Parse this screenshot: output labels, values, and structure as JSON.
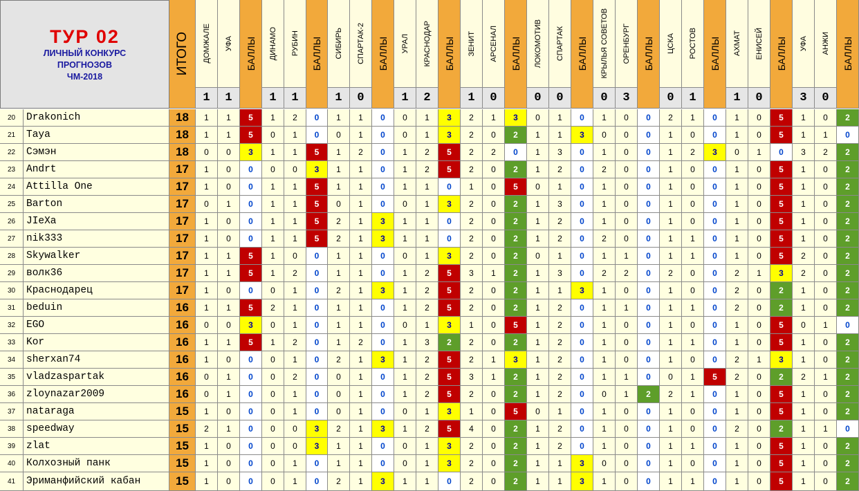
{
  "header": {
    "tour": "ТУР 02",
    "subtitle_lines": [
      "ЛИЧНЫЙ КОНКУРС",
      "ПРОГНОЗОВ",
      "ЧМ-2018"
    ],
    "total_label": "ИТОГО",
    "points_label": "БАЛЛЫ"
  },
  "matches": [
    {
      "home": "ДОМЖАЛЕ",
      "away": "УФА",
      "score": [
        "1",
        "1"
      ]
    },
    {
      "home": "ДИНАМО",
      "away": "РУБИН",
      "score": [
        "1",
        "1"
      ]
    },
    {
      "home": "СИБИРЬ",
      "away": "СПАРТАК-2",
      "score": [
        "1",
        "0"
      ]
    },
    {
      "home": "УРАЛ",
      "away": "КРАСНОДАР",
      "score": [
        "1",
        "2"
      ]
    },
    {
      "home": "ЗЕНИТ",
      "away": "АРСЕНАЛ",
      "score": [
        "1",
        "0"
      ]
    },
    {
      "home": "ЛОКОМОТИВ",
      "away": "СПАРТАК",
      "score": [
        "0",
        "0"
      ]
    },
    {
      "home": "КРЫЛЬЯ СОВЕТОВ",
      "away": "ОРЕНБУРГ",
      "score": [
        "0",
        "3"
      ]
    },
    {
      "home": "ЦСКА",
      "away": "РОСТОВ",
      "score": [
        "0",
        "1"
      ]
    },
    {
      "home": "АХМАТ",
      "away": "ЕНИСЕЙ",
      "score": [
        "1",
        "0"
      ]
    },
    {
      "home": "УФА",
      "away": "АНЖИ",
      "score": [
        "3",
        "0"
      ]
    }
  ],
  "rows": [
    {
      "num": "20",
      "name": "Drakonich",
      "total": "18",
      "preds": [
        [
          "1",
          "1",
          "5"
        ],
        [
          "1",
          "2",
          "0"
        ],
        [
          "1",
          "1",
          "0"
        ],
        [
          "0",
          "1",
          "3"
        ],
        [
          "2",
          "1",
          "3"
        ],
        [
          "0",
          "1",
          "0"
        ],
        [
          "1",
          "0",
          "0"
        ],
        [
          "2",
          "1",
          "0"
        ],
        [
          "1",
          "0",
          "5"
        ],
        [
          "1",
          "0",
          "2"
        ]
      ]
    },
    {
      "num": "21",
      "name": "Taya",
      "total": "18",
      "preds": [
        [
          "1",
          "1",
          "5"
        ],
        [
          "0",
          "1",
          "0"
        ],
        [
          "0",
          "1",
          "0"
        ],
        [
          "0",
          "1",
          "3"
        ],
        [
          "2",
          "0",
          "2"
        ],
        [
          "1",
          "1",
          "3"
        ],
        [
          "0",
          "0",
          "0"
        ],
        [
          "1",
          "0",
          "0"
        ],
        [
          "1",
          "0",
          "5"
        ],
        [
          "1",
          "1",
          "0"
        ]
      ]
    },
    {
      "num": "22",
      "name": "Сэмэн",
      "total": "18",
      "preds": [
        [
          "0",
          "0",
          "3"
        ],
        [
          "1",
          "1",
          "5"
        ],
        [
          "1",
          "2",
          "0"
        ],
        [
          "1",
          "2",
          "5"
        ],
        [
          "2",
          "2",
          "0"
        ],
        [
          "1",
          "3",
          "0"
        ],
        [
          "1",
          "0",
          "0"
        ],
        [
          "1",
          "2",
          "3"
        ],
        [
          "0",
          "1",
          "0"
        ],
        [
          "3",
          "2",
          "2"
        ]
      ]
    },
    {
      "num": "23",
      "name": "Andrt",
      "total": "17",
      "preds": [
        [
          "1",
          "0",
          "0"
        ],
        [
          "0",
          "0",
          "3"
        ],
        [
          "1",
          "1",
          "0"
        ],
        [
          "1",
          "2",
          "5"
        ],
        [
          "2",
          "0",
          "2"
        ],
        [
          "1",
          "2",
          "0"
        ],
        [
          "2",
          "0",
          "0"
        ],
        [
          "1",
          "0",
          "0"
        ],
        [
          "1",
          "0",
          "5"
        ],
        [
          "1",
          "0",
          "2"
        ]
      ]
    },
    {
      "num": "24",
      "name": "Attilla One",
      "total": "17",
      "preds": [
        [
          "1",
          "0",
          "0"
        ],
        [
          "1",
          "1",
          "5"
        ],
        [
          "1",
          "1",
          "0"
        ],
        [
          "1",
          "1",
          "0"
        ],
        [
          "1",
          "0",
          "5"
        ],
        [
          "0",
          "1",
          "0"
        ],
        [
          "1",
          "0",
          "0"
        ],
        [
          "1",
          "0",
          "0"
        ],
        [
          "1",
          "0",
          "5"
        ],
        [
          "1",
          "0",
          "2"
        ]
      ]
    },
    {
      "num": "25",
      "name": "Barton",
      "total": "17",
      "preds": [
        [
          "0",
          "1",
          "0"
        ],
        [
          "1",
          "1",
          "5"
        ],
        [
          "0",
          "1",
          "0"
        ],
        [
          "0",
          "1",
          "3"
        ],
        [
          "2",
          "0",
          "2"
        ],
        [
          "1",
          "3",
          "0"
        ],
        [
          "1",
          "0",
          "0"
        ],
        [
          "1",
          "0",
          "0"
        ],
        [
          "1",
          "0",
          "5"
        ],
        [
          "1",
          "0",
          "2"
        ]
      ]
    },
    {
      "num": "26",
      "name": "JIeXa",
      "total": "17",
      "preds": [
        [
          "1",
          "0",
          "0"
        ],
        [
          "1",
          "1",
          "5"
        ],
        [
          "2",
          "1",
          "3"
        ],
        [
          "1",
          "1",
          "0"
        ],
        [
          "2",
          "0",
          "2"
        ],
        [
          "1",
          "2",
          "0"
        ],
        [
          "1",
          "0",
          "0"
        ],
        [
          "1",
          "0",
          "0"
        ],
        [
          "1",
          "0",
          "5"
        ],
        [
          "1",
          "0",
          "2"
        ]
      ]
    },
    {
      "num": "27",
      "name": "nik333",
      "total": "17",
      "preds": [
        [
          "1",
          "0",
          "0"
        ],
        [
          "1",
          "1",
          "5"
        ],
        [
          "2",
          "1",
          "3"
        ],
        [
          "1",
          "1",
          "0"
        ],
        [
          "2",
          "0",
          "2"
        ],
        [
          "1",
          "2",
          "0"
        ],
        [
          "2",
          "0",
          "0"
        ],
        [
          "1",
          "1",
          "0"
        ],
        [
          "1",
          "0",
          "5"
        ],
        [
          "1",
          "0",
          "2"
        ]
      ]
    },
    {
      "num": "28",
      "name": "Skywalker",
      "total": "17",
      "preds": [
        [
          "1",
          "1",
          "5"
        ],
        [
          "1",
          "0",
          "0"
        ],
        [
          "1",
          "1",
          "0"
        ],
        [
          "0",
          "1",
          "3"
        ],
        [
          "2",
          "0",
          "2"
        ],
        [
          "0",
          "1",
          "0"
        ],
        [
          "1",
          "1",
          "0"
        ],
        [
          "1",
          "1",
          "0"
        ],
        [
          "1",
          "0",
          "5"
        ],
        [
          "2",
          "0",
          "2"
        ]
      ]
    },
    {
      "num": "29",
      "name": "волк36",
      "total": "17",
      "preds": [
        [
          "1",
          "1",
          "5"
        ],
        [
          "1",
          "2",
          "0"
        ],
        [
          "1",
          "1",
          "0"
        ],
        [
          "1",
          "2",
          "5"
        ],
        [
          "3",
          "1",
          "2"
        ],
        [
          "1",
          "3",
          "0"
        ],
        [
          "2",
          "2",
          "0"
        ],
        [
          "2",
          "0",
          "0"
        ],
        [
          "2",
          "1",
          "3"
        ],
        [
          "2",
          "0",
          "2"
        ]
      ]
    },
    {
      "num": "30",
      "name": "Краснодарец",
      "total": "17",
      "preds": [
        [
          "1",
          "0",
          "0"
        ],
        [
          "0",
          "1",
          "0"
        ],
        [
          "2",
          "1",
          "3"
        ],
        [
          "1",
          "2",
          "5"
        ],
        [
          "2",
          "0",
          "2"
        ],
        [
          "1",
          "1",
          "3"
        ],
        [
          "1",
          "0",
          "0"
        ],
        [
          "1",
          "0",
          "0"
        ],
        [
          "2",
          "0",
          "2"
        ],
        [
          "1",
          "0",
          "2"
        ]
      ]
    },
    {
      "num": "31",
      "name": "beduin",
      "total": "16",
      "preds": [
        [
          "1",
          "1",
          "5"
        ],
        [
          "2",
          "1",
          "0"
        ],
        [
          "1",
          "1",
          "0"
        ],
        [
          "1",
          "2",
          "5"
        ],
        [
          "2",
          "0",
          "2"
        ],
        [
          "1",
          "2",
          "0"
        ],
        [
          "1",
          "1",
          "0"
        ],
        [
          "1",
          "1",
          "0"
        ],
        [
          "2",
          "0",
          "2"
        ],
        [
          "1",
          "0",
          "2"
        ]
      ]
    },
    {
      "num": "32",
      "name": "EGO",
      "total": "16",
      "preds": [
        [
          "0",
          "0",
          "3"
        ],
        [
          "0",
          "1",
          "0"
        ],
        [
          "1",
          "1",
          "0"
        ],
        [
          "0",
          "1",
          "3"
        ],
        [
          "1",
          "0",
          "5"
        ],
        [
          "1",
          "2",
          "0"
        ],
        [
          "1",
          "0",
          "0"
        ],
        [
          "1",
          "0",
          "0"
        ],
        [
          "1",
          "0",
          "5"
        ],
        [
          "0",
          "1",
          "0"
        ]
      ]
    },
    {
      "num": "33",
      "name": "Kor",
      "total": "16",
      "preds": [
        [
          "1",
          "1",
          "5"
        ],
        [
          "1",
          "2",
          "0"
        ],
        [
          "1",
          "2",
          "0"
        ],
        [
          "1",
          "3",
          "2"
        ],
        [
          "2",
          "0",
          "2"
        ],
        [
          "1",
          "2",
          "0"
        ],
        [
          "1",
          "0",
          "0"
        ],
        [
          "1",
          "1",
          "0"
        ],
        [
          "1",
          "0",
          "5"
        ],
        [
          "1",
          "0",
          "2"
        ]
      ]
    },
    {
      "num": "34",
      "name": "sherxan74",
      "total": "16",
      "preds": [
        [
          "1",
          "0",
          "0"
        ],
        [
          "0",
          "1",
          "0"
        ],
        [
          "2",
          "1",
          "3"
        ],
        [
          "1",
          "2",
          "5"
        ],
        [
          "2",
          "1",
          "3"
        ],
        [
          "1",
          "2",
          "0"
        ],
        [
          "1",
          "0",
          "0"
        ],
        [
          "1",
          "0",
          "0"
        ],
        [
          "2",
          "1",
          "3"
        ],
        [
          "1",
          "0",
          "2"
        ]
      ]
    },
    {
      "num": "35",
      "name": "vladzaspartak",
      "total": "16",
      "preds": [
        [
          "0",
          "1",
          "0"
        ],
        [
          "0",
          "2",
          "0"
        ],
        [
          "0",
          "1",
          "0"
        ],
        [
          "1",
          "2",
          "5"
        ],
        [
          "3",
          "1",
          "2"
        ],
        [
          "1",
          "2",
          "0"
        ],
        [
          "1",
          "1",
          "0"
        ],
        [
          "0",
          "1",
          "5"
        ],
        [
          "2",
          "0",
          "2"
        ],
        [
          "2",
          "1",
          "2"
        ]
      ]
    },
    {
      "num": "36",
      "name": "zloynazar2009",
      "total": "16",
      "preds": [
        [
          "0",
          "1",
          "0"
        ],
        [
          "0",
          "1",
          "0"
        ],
        [
          "0",
          "1",
          "0"
        ],
        [
          "1",
          "2",
          "5"
        ],
        [
          "2",
          "0",
          "2"
        ],
        [
          "1",
          "2",
          "0"
        ],
        [
          "0",
          "1",
          "2"
        ],
        [
          "2",
          "1",
          "0"
        ],
        [
          "1",
          "0",
          "5"
        ],
        [
          "1",
          "0",
          "2"
        ]
      ]
    },
    {
      "num": "37",
      "name": "nataraga",
      "total": "15",
      "preds": [
        [
          "1",
          "0",
          "0"
        ],
        [
          "0",
          "1",
          "0"
        ],
        [
          "0",
          "1",
          "0"
        ],
        [
          "0",
          "1",
          "3"
        ],
        [
          "1",
          "0",
          "5"
        ],
        [
          "0",
          "1",
          "0"
        ],
        [
          "1",
          "0",
          "0"
        ],
        [
          "1",
          "0",
          "0"
        ],
        [
          "1",
          "0",
          "5"
        ],
        [
          "1",
          "0",
          "2"
        ]
      ]
    },
    {
      "num": "38",
      "name": "speedway",
      "total": "15",
      "preds": [
        [
          "2",
          "1",
          "0"
        ],
        [
          "0",
          "0",
          "3"
        ],
        [
          "2",
          "1",
          "3"
        ],
        [
          "1",
          "2",
          "5"
        ],
        [
          "4",
          "0",
          "2"
        ],
        [
          "1",
          "2",
          "0"
        ],
        [
          "1",
          "0",
          "0"
        ],
        [
          "1",
          "0",
          "0"
        ],
        [
          "2",
          "0",
          "2"
        ],
        [
          "1",
          "1",
          "0"
        ]
      ]
    },
    {
      "num": "39",
      "name": "zlat",
      "total": "15",
      "preds": [
        [
          "1",
          "0",
          "0"
        ],
        [
          "0",
          "0",
          "3"
        ],
        [
          "1",
          "1",
          "0"
        ],
        [
          "0",
          "1",
          "3"
        ],
        [
          "2",
          "0",
          "2"
        ],
        [
          "1",
          "2",
          "0"
        ],
        [
          "1",
          "0",
          "0"
        ],
        [
          "1",
          "1",
          "0"
        ],
        [
          "1",
          "0",
          "5"
        ],
        [
          "1",
          "0",
          "2"
        ]
      ]
    },
    {
      "num": "40",
      "name": "Колхозный панк",
      "total": "15",
      "preds": [
        [
          "1",
          "0",
          "0"
        ],
        [
          "0",
          "1",
          "0"
        ],
        [
          "1",
          "1",
          "0"
        ],
        [
          "0",
          "1",
          "3"
        ],
        [
          "2",
          "0",
          "2"
        ],
        [
          "1",
          "1",
          "3"
        ],
        [
          "0",
          "0",
          "0"
        ],
        [
          "1",
          "0",
          "0"
        ],
        [
          "1",
          "0",
          "5"
        ],
        [
          "1",
          "0",
          "2"
        ]
      ]
    },
    {
      "num": "41",
      "name": "Эриманфийский кабан",
      "total": "15",
      "preds": [
        [
          "1",
          "0",
          "0"
        ],
        [
          "0",
          "1",
          "0"
        ],
        [
          "2",
          "1",
          "3"
        ],
        [
          "1",
          "1",
          "0"
        ],
        [
          "2",
          "0",
          "2"
        ],
        [
          "1",
          "1",
          "3"
        ],
        [
          "1",
          "0",
          "0"
        ],
        [
          "1",
          "1",
          "0"
        ],
        [
          "1",
          "0",
          "5"
        ],
        [
          "1",
          "0",
          "2"
        ]
      ]
    }
  ],
  "colors": {
    "points_5": "#c00000",
    "points_3": "#ffff00",
    "points_2": "#5e9e2a",
    "points_0": "#ffffff",
    "header_orange": "#f2a93b",
    "row_bg": "#ffffe0"
  }
}
